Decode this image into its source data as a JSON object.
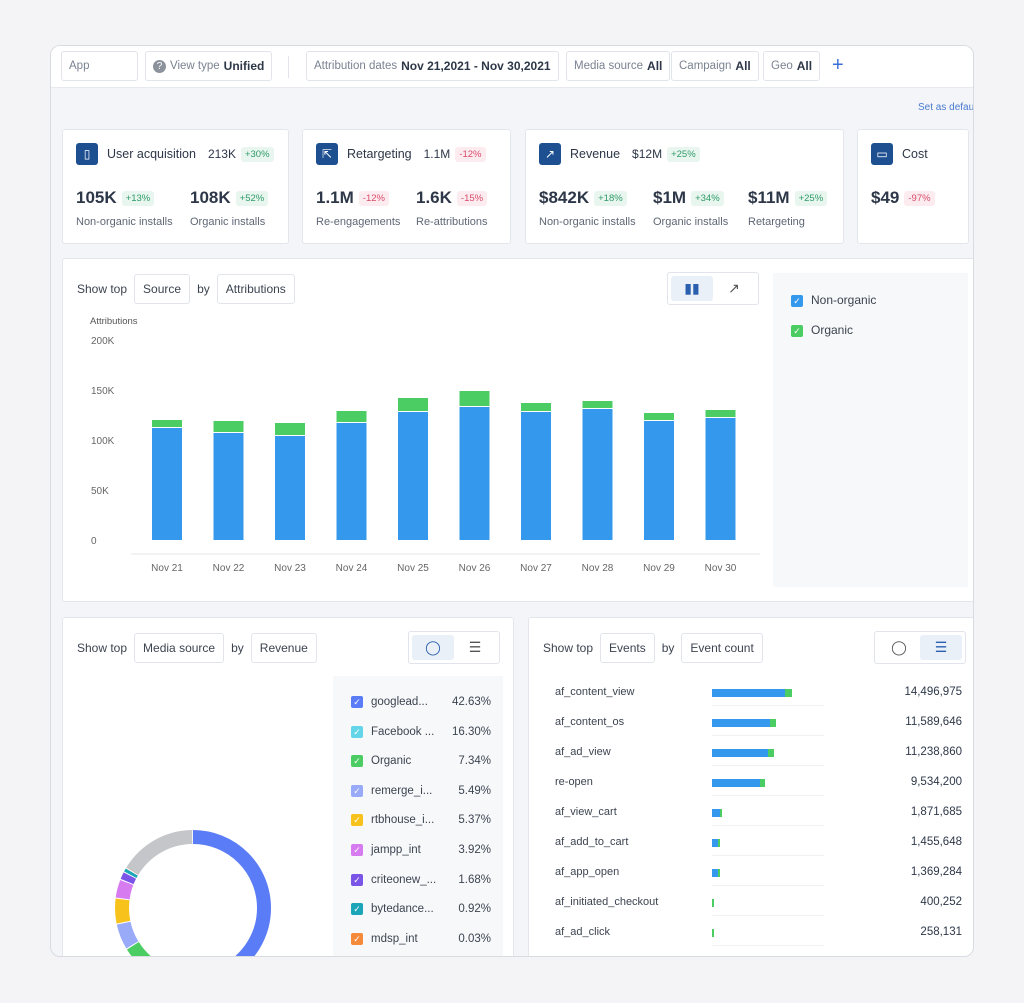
{
  "filters": {
    "app": "App",
    "view_type_label": "View type",
    "view_type": "Unified",
    "dates_label": "Attribution dates",
    "dates": "Nov 21,2021 - Nov 30,2021",
    "media_label": "Media source",
    "media": "All",
    "campaign_label": "Campaign",
    "campaign": "All",
    "geo_label": "Geo",
    "geo": "All",
    "add": "+"
  },
  "set_default": "Set as default",
  "kpis": [
    {
      "title": "User acquisition",
      "total": "213K",
      "delta": "+30%",
      "metrics": [
        {
          "value": "105K",
          "delta": "+13%",
          "label": "Non-organic installs"
        },
        {
          "value": "108K",
          "delta": "+52%",
          "label": "Organic installs"
        }
      ]
    },
    {
      "title": "Retargeting",
      "total": "1.1M",
      "delta": "-12%",
      "metrics": [
        {
          "value": "1.1M",
          "delta": "-12%",
          "label": "Re-engagements"
        },
        {
          "value": "1.6K",
          "delta": "-15%",
          "label": "Re-attributions"
        }
      ]
    },
    {
      "title": "Revenue",
      "total": "$12M",
      "delta": "+25%",
      "metrics": [
        {
          "value": "$842K",
          "delta": "+18%",
          "label": "Non-organic installs"
        },
        {
          "value": "$1M",
          "delta": "+34%",
          "label": "Organic installs"
        },
        {
          "value": "$11M",
          "delta": "+25%",
          "label": "Retargeting"
        }
      ]
    },
    {
      "title": "Cost",
      "metrics": [
        {
          "value": "$49",
          "delta": "-97%"
        }
      ]
    }
  ],
  "main_chart": {
    "show_top": "Show top",
    "dimension": "Source",
    "by": "by",
    "metric": "Attributions",
    "legend": [
      "Non-organic",
      "Organic"
    ]
  },
  "media_panel": {
    "show_top": "Show top",
    "dimension": "Media source",
    "by": "by",
    "metric": "Revenue"
  },
  "events_panel": {
    "show_top": "Show top",
    "dimension": "Events",
    "by": "by",
    "metric": "Event count"
  },
  "colors": {
    "non_organic": "#3498ec",
    "organic": "#4ccd64",
    "accent": "#1d4f91"
  },
  "chart_data": [
    {
      "type": "bar",
      "stacked": true,
      "ylabel": "Attributions",
      "ylim": [
        0,
        200000
      ],
      "yticks": [
        "0",
        "50K",
        "100K",
        "150K",
        "200K"
      ],
      "categories": [
        "Nov 21",
        "Nov 22",
        "Nov 23",
        "Nov 24",
        "Nov 25",
        "Nov 26",
        "Nov 27",
        "Nov 28",
        "Nov 29",
        "Nov 30"
      ],
      "series": [
        {
          "name": "Non-organic",
          "values": [
            112000,
            107000,
            104000,
            117000,
            128000,
            133000,
            128000,
            131000,
            119000,
            122000
          ]
        },
        {
          "name": "Organic",
          "values": [
            8000,
            12000,
            13000,
            12000,
            14000,
            16000,
            9000,
            8000,
            8000,
            8000
          ]
        }
      ],
      "legend": "right",
      "grid": false
    },
    {
      "type": "pie",
      "donut": true,
      "items": [
        {
          "label": "googlead...",
          "pct": "42.63%",
          "value": 42.63,
          "color": "#5b7cf7"
        },
        {
          "label": "Facebook ...",
          "pct": "16.30%",
          "value": 16.3,
          "color": "#62d6e8"
        },
        {
          "label": "Organic",
          "pct": "7.34%",
          "value": 7.34,
          "color": "#4ccd64"
        },
        {
          "label": "remerge_i...",
          "pct": "5.49%",
          "value": 5.49,
          "color": "#98aaf8"
        },
        {
          "label": "rtbhouse_i...",
          "pct": "5.37%",
          "value": 5.37,
          "color": "#f7c21b"
        },
        {
          "label": "jampp_int",
          "pct": "3.92%",
          "value": 3.92,
          "color": "#d77cf0"
        },
        {
          "label": "criteonew_...",
          "pct": "1.68%",
          "value": 1.68,
          "color": "#7b55e8"
        },
        {
          "label": "bytedance...",
          "pct": "0.92%",
          "value": 0.92,
          "color": "#1aa5b8"
        },
        {
          "label": "mdsp_int",
          "pct": "0.03%",
          "value": 0.03,
          "color": "#f58a3a"
        }
      ],
      "remainder_color": "#c4c6ca"
    },
    {
      "type": "bar",
      "orientation": "horizontal",
      "items": [
        {
          "label": "af_content_view",
          "value": 14496975,
          "text": "14,496,975"
        },
        {
          "label": "af_content_os",
          "value": 11589646,
          "text": "11,589,646"
        },
        {
          "label": "af_ad_view",
          "value": 11238860,
          "text": "11,238,860"
        },
        {
          "label": "re-open",
          "value": 9534200,
          "text": "9,534,200"
        },
        {
          "label": "af_view_cart",
          "value": 1871685,
          "text": "1,871,685"
        },
        {
          "label": "af_add_to_cart",
          "value": 1455648,
          "text": "1,455,648"
        },
        {
          "label": "af_app_open",
          "value": 1369284,
          "text": "1,369,284"
        },
        {
          "label": "af_initiated_checkout",
          "value": 400252,
          "text": "400,252"
        },
        {
          "label": "af_ad_click",
          "value": 258131,
          "text": "258,131"
        }
      ]
    }
  ]
}
